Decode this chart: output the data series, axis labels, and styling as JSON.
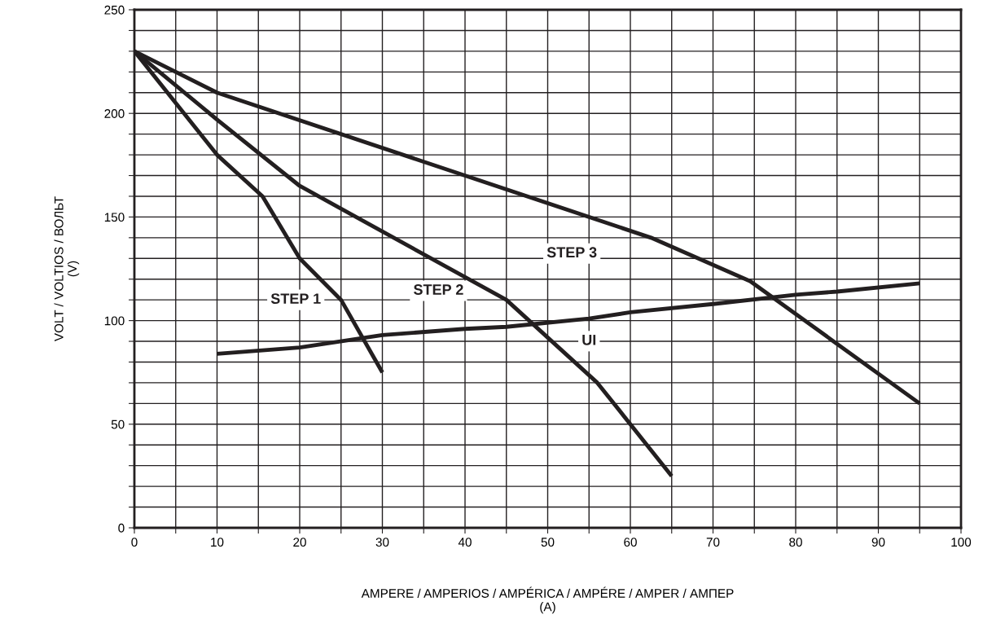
{
  "chart_data": {
    "type": "line",
    "xlabel": "AMPERE / AMPERIOS / AMPÉRICA / AMPÉRE / AMPER / АМПЕР\n(A)",
    "ylabel": "VOLT / VOLTIOS / ВОЛЬТ\n(V)",
    "xlim": [
      0,
      100
    ],
    "ylim": [
      0,
      250
    ],
    "xticks": [
      0,
      {
        "value": 5,
        "label": null
      },
      10,
      {
        "value": 15,
        "label": null
      },
      20,
      {
        "value": 25,
        "label": null
      },
      30,
      {
        "value": 35,
        "label": null
      },
      40,
      {
        "value": 45,
        "label": null
      },
      50,
      {
        "value": 55,
        "label": null
      },
      60,
      {
        "value": 65,
        "label": null
      },
      70,
      {
        "value": 75,
        "label": null
      },
      80,
      {
        "value": 85,
        "label": null
      },
      90,
      {
        "value": 95,
        "label": null
      },
      100
    ],
    "yticks": [
      0,
      {
        "value": 10,
        "label": null
      },
      {
        "value": 20,
        "label": null
      },
      {
        "value": 30,
        "label": null
      },
      {
        "value": 40,
        "label": null
      },
      50,
      {
        "value": 60,
        "label": null
      },
      {
        "value": 70,
        "label": null
      },
      {
        "value": 80,
        "label": null
      },
      {
        "value": 90,
        "label": null
      },
      100,
      {
        "value": 110,
        "label": null
      },
      {
        "value": 120,
        "label": null
      },
      {
        "value": 130,
        "label": null
      },
      {
        "value": 140,
        "label": null
      },
      150,
      {
        "value": 160,
        "label": null
      },
      {
        "value": 170,
        "label": null
      },
      {
        "value": 180,
        "label": null
      },
      {
        "value": 190,
        "label": null
      },
      200,
      {
        "value": 210,
        "label": null
      },
      {
        "value": 220,
        "label": null
      },
      {
        "value": 230,
        "label": null
      },
      {
        "value": 240,
        "label": null
      },
      250
    ],
    "grid": true,
    "marker": "none",
    "line_style": "solid",
    "series": [
      {
        "name": "STEP 1",
        "color": "#231f20",
        "x": [
          0,
          10,
          15.5,
          20,
          25,
          30
        ],
        "values": [
          230,
          180,
          160,
          130,
          110,
          75
        ]
      },
      {
        "name": "STEP 2",
        "color": "#231f20",
        "x": [
          0,
          10,
          20,
          45,
          56,
          65
        ],
        "values": [
          230,
          197,
          165,
          110,
          70,
          25
        ]
      },
      {
        "name": "STEP 3",
        "color": "#231f20",
        "x": [
          0,
          10,
          62.5,
          74.5,
          95
        ],
        "values": [
          230,
          210,
          140,
          119,
          60
        ]
      },
      {
        "name": "UI",
        "color": "#231f20",
        "x": [
          10,
          20,
          30,
          40,
          45,
          55,
          60,
          70,
          80,
          85,
          95
        ],
        "values": [
          84,
          87,
          93,
          96,
          97,
          101,
          104,
          108,
          112.5,
          114,
          118
        ]
      }
    ]
  }
}
